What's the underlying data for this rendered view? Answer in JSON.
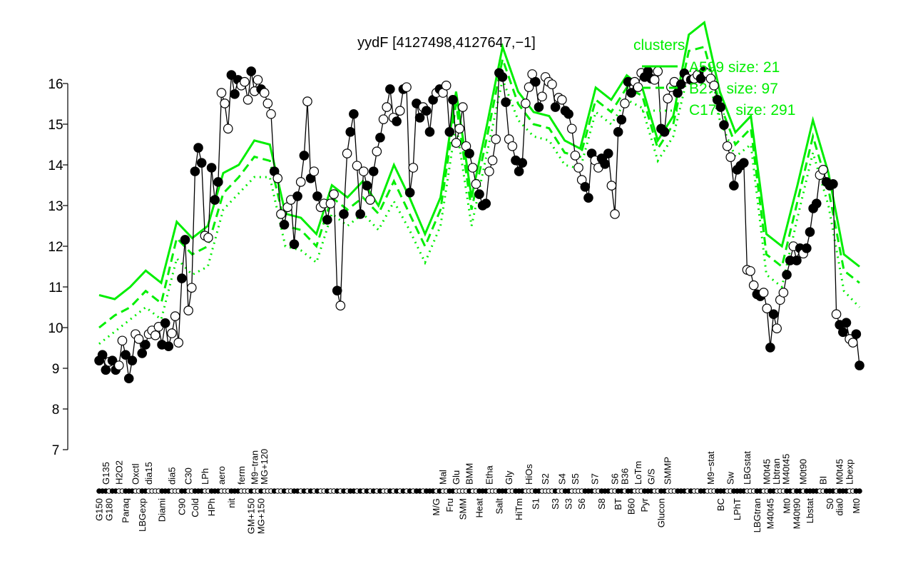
{
  "chart_data": {
    "type": "line",
    "title": "yydF [4127498,4127647,−1]",
    "xlabel": "",
    "ylabel": "",
    "ylim": [
      7,
      16
    ],
    "yticks": [
      7,
      8,
      9,
      10,
      11,
      12,
      13,
      14,
      15,
      16
    ],
    "grid": false,
    "colors": {
      "points": "#000000",
      "clusters": "#00ee00"
    },
    "point_format": "[value, filled(1)/open(0), tick label, label side t=top b=bottom]",
    "points": [
      [
        9.19,
        1,
        "G150",
        "b"
      ],
      [
        9.33,
        1
      ],
      [
        8.96,
        1,
        "G135",
        "t"
      ],
      [
        9.16,
        0,
        "G180",
        "b"
      ],
      [
        9.19,
        1
      ],
      [
        8.96,
        1
      ],
      [
        9.07,
        0,
        "H2O2",
        "t"
      ],
      [
        9.68,
        0
      ],
      [
        9.33,
        1,
        "Paraq",
        "b"
      ],
      [
        8.75,
        1
      ],
      [
        9.19,
        1
      ],
      [
        9.84,
        0,
        "Oxctl",
        "t"
      ],
      [
        9.72,
        0
      ],
      [
        9.37,
        1,
        "LBGexp",
        "b"
      ],
      [
        9.58,
        1
      ],
      [
        9.84,
        0,
        "dia15",
        "t"
      ],
      [
        9.93,
        0
      ],
      [
        9.81,
        0
      ],
      [
        10.02,
        0
      ],
      [
        9.58,
        1,
        "Diami",
        "b"
      ],
      [
        10.11,
        1
      ],
      [
        9.54,
        1
      ],
      [
        9.86,
        0,
        "dia5",
        "t"
      ],
      [
        10.28,
        0
      ],
      [
        9.63,
        0
      ],
      [
        11.21,
        1,
        "C90",
        "b"
      ],
      [
        12.16,
        1
      ],
      [
        10.42,
        0,
        "C30",
        "t"
      ],
      [
        10.98,
        0
      ],
      [
        13.84,
        1,
        "Cold",
        "b"
      ],
      [
        14.42,
        1
      ],
      [
        14.05,
        1
      ],
      [
        12.26,
        0,
        "LPh",
        "t"
      ],
      [
        12.21,
        0
      ],
      [
        13.93,
        1,
        "HPh",
        "b"
      ],
      [
        13.14,
        1
      ],
      [
        13.58,
        1
      ],
      [
        15.77,
        0,
        "aero",
        "t"
      ],
      [
        15.51,
        0
      ],
      [
        14.89,
        0
      ],
      [
        16.21,
        1,
        "nit",
        "b"
      ],
      [
        15.74,
        1
      ],
      [
        16.09,
        1
      ],
      [
        15.95,
        0,
        "ferm",
        "t"
      ],
      [
        16.04,
        0
      ],
      [
        15.6,
        0
      ],
      [
        16.3,
        1,
        "GM+150",
        "b"
      ],
      [
        15.81,
        0,
        "M9−tran",
        "t"
      ],
      [
        16.09,
        0
      ],
      [
        15.86,
        1,
        "MG+150",
        "b"
      ],
      [
        15.77,
        0,
        "MG+120",
        "t"
      ],
      [
        15.51,
        0
      ],
      [
        15.25,
        0
      ],
      [
        13.84,
        1
      ],
      [
        13.67,
        0
      ],
      [
        12.79,
        0
      ],
      [
        12.53,
        1
      ],
      [
        12.96,
        0
      ],
      [
        13.14,
        0
      ],
      [
        12.05,
        1
      ],
      [
        13.23,
        1
      ],
      [
        13.58,
        0
      ],
      [
        14.23,
        1
      ],
      [
        15.56,
        0
      ],
      [
        13.67,
        1
      ],
      [
        13.84,
        0
      ],
      [
        13.23,
        1
      ],
      [
        12.96,
        0
      ],
      [
        13.05,
        0
      ],
      [
        12.65,
        1
      ],
      [
        13.05,
        0
      ],
      [
        13.28,
        0
      ],
      [
        10.91,
        1
      ],
      [
        10.54,
        0
      ],
      [
        12.79,
        1
      ],
      [
        14.28,
        0
      ],
      [
        14.81,
        1
      ],
      [
        15.25,
        1
      ],
      [
        13.98,
        0
      ],
      [
        12.79,
        1
      ],
      [
        13.84,
        0
      ],
      [
        13.49,
        1
      ],
      [
        13.14,
        0
      ],
      [
        13.84,
        1
      ],
      [
        14.33,
        0
      ],
      [
        14.67,
        1
      ],
      [
        15.12,
        0
      ],
      [
        15.42,
        0
      ],
      [
        15.86,
        1
      ],
      [
        15.16,
        0
      ],
      [
        15.07,
        1
      ],
      [
        15.33,
        0
      ],
      [
        15.86,
        1
      ],
      [
        15.91,
        0
      ],
      [
        13.32,
        1
      ],
      [
        13.93,
        0
      ],
      [
        15.51,
        1
      ],
      [
        15.16,
        1
      ],
      [
        15.42,
        0
      ],
      [
        15.33,
        1
      ],
      [
        14.81,
        1
      ],
      [
        15.6,
        1
      ],
      [
        15.77,
        0,
        "M/G",
        "b"
      ],
      [
        15.86,
        1
      ],
      [
        15.77,
        0,
        "Mal",
        "t"
      ],
      [
        15.95,
        0
      ],
      [
        14.81,
        1,
        "Fru",
        "b"
      ],
      [
        15.6,
        1
      ],
      [
        14.54,
        0,
        "Glu",
        "t"
      ],
      [
        14.89,
        0
      ],
      [
        15.42,
        0,
        "SMM",
        "b"
      ],
      [
        14.46,
        0
      ],
      [
        14.28,
        1,
        "BMM",
        "t"
      ],
      [
        13.93,
        0
      ],
      [
        13.53,
        0
      ],
      [
        13.28,
        1,
        "Heat",
        "b"
      ],
      [
        13.0,
        1
      ],
      [
        13.05,
        1
      ],
      [
        13.84,
        0,
        "Etha",
        "t"
      ],
      [
        14.11,
        0
      ],
      [
        14.63,
        0
      ],
      [
        16.26,
        1,
        "Salt",
        "b"
      ],
      [
        16.16,
        1
      ],
      [
        15.54,
        1
      ],
      [
        14.63,
        0,
        "Gly",
        "t"
      ],
      [
        14.46,
        0
      ],
      [
        14.11,
        1
      ],
      [
        13.84,
        1,
        "HiTm",
        "b"
      ],
      [
        14.05,
        1
      ],
      [
        15.51,
        0
      ],
      [
        15.91,
        0,
        "HiOs",
        "t"
      ],
      [
        16.23,
        0
      ],
      [
        16.04,
        1,
        "S1",
        "b"
      ],
      [
        15.42,
        1
      ],
      [
        15.68,
        0
      ],
      [
        16.16,
        0,
        "S2",
        "t"
      ],
      [
        16.04,
        0
      ],
      [
        15.98,
        0
      ],
      [
        15.42,
        1,
        "S3",
        "b"
      ],
      [
        15.65,
        0
      ],
      [
        15.6,
        0,
        "S4",
        "t"
      ],
      [
        15.33,
        1
      ],
      [
        15.25,
        1,
        "S3",
        "b"
      ],
      [
        14.89,
        0
      ],
      [
        14.23,
        0,
        "S5",
        "t"
      ],
      [
        13.93,
        0
      ],
      [
        13.63,
        0,
        "S6",
        "b"
      ],
      [
        13.46,
        1
      ],
      [
        13.19,
        1
      ],
      [
        14.28,
        1
      ],
      [
        14.11,
        0,
        "S7",
        "t"
      ],
      [
        13.93,
        0
      ],
      [
        14.16,
        1,
        "S8",
        "b"
      ],
      [
        14.02,
        1
      ],
      [
        14.28,
        1
      ],
      [
        13.49,
        0
      ],
      [
        12.79,
        0,
        "S6",
        "t"
      ],
      [
        14.81,
        1,
        "BT",
        "b"
      ],
      [
        15.11,
        1
      ],
      [
        15.51,
        0,
        "B36",
        "t"
      ],
      [
        16.04,
        1
      ],
      [
        15.77,
        1,
        "B60",
        "b"
      ],
      [
        16.04,
        0
      ],
      [
        15.91,
        0,
        "LoTm",
        "t"
      ],
      [
        16.26,
        0
      ],
      [
        16.16,
        1,
        "Pyr",
        "b"
      ],
      [
        16.3,
        1
      ],
      [
        16.12,
        1,
        "G/S",
        "t"
      ],
      [
        16.09,
        0
      ],
      [
        16.3,
        0
      ],
      [
        14.89,
        1,
        "Glucon",
        "b"
      ],
      [
        14.81,
        1
      ],
      [
        15.63,
        0,
        "SMMP",
        "t"
      ],
      [
        15.91,
        0
      ],
      [
        16.04,
        0
      ],
      [
        15.77,
        1
      ],
      [
        15.98,
        1
      ],
      [
        16.25,
        1
      ],
      [
        16.12,
        0
      ],
      [
        16.09,
        1
      ],
      [
        16.12,
        0
      ],
      [
        16.21,
        0
      ],
      [
        16.12,
        1
      ],
      [
        16.3,
        1
      ],
      [
        16.25,
        0
      ],
      [
        16.12,
        0,
        "M9−stat",
        "t"
      ],
      [
        15.95,
        0
      ],
      [
        15.6,
        1
      ],
      [
        15.42,
        1,
        "BC",
        "b"
      ],
      [
        14.98,
        1
      ],
      [
        14.46,
        0
      ],
      [
        14.19,
        0,
        "Sw",
        "t"
      ],
      [
        13.49,
        1
      ],
      [
        13.88,
        1,
        "LPhT",
        "b"
      ],
      [
        13.98,
        1
      ],
      [
        14.05,
        1
      ],
      [
        11.42,
        0,
        "LBGstat",
        "t"
      ],
      [
        11.39,
        0
      ],
      [
        11.04,
        0
      ],
      [
        10.82,
        1,
        "LBGtran",
        "b"
      ],
      [
        10.77,
        1
      ],
      [
        10.86,
        0
      ],
      [
        10.47,
        0,
        "M0t45",
        "t"
      ],
      [
        9.51,
        1,
        "M40t45",
        "b"
      ],
      [
        10.33,
        1,
        "Lbtran",
        "t"
      ],
      [
        9.98,
        0
      ],
      [
        10.68,
        0,
        "M40t45",
        "t"
      ],
      [
        10.86,
        0
      ],
      [
        11.3,
        1,
        "Mt0",
        "b"
      ],
      [
        11.65,
        1
      ],
      [
        12.0,
        0
      ],
      [
        11.65,
        1,
        "M40t90",
        "b"
      ],
      [
        11.95,
        1
      ],
      [
        11.82,
        0,
        "M0t90",
        "t"
      ],
      [
        11.95,
        1
      ],
      [
        12.35,
        1,
        "Lbstat",
        "b"
      ],
      [
        12.93,
        1
      ],
      [
        13.05,
        1
      ],
      [
        13.75,
        0
      ],
      [
        13.88,
        0,
        "BI",
        "t"
      ],
      [
        13.58,
        1
      ],
      [
        13.49,
        1,
        "S0",
        "b"
      ],
      [
        13.53,
        1
      ],
      [
        10.33,
        0,
        "dia0",
        "b"
      ],
      [
        10.07,
        1,
        "M0t45",
        "t"
      ],
      [
        9.89,
        1
      ],
      [
        10.12,
        1
      ],
      [
        9.72,
        0,
        "Lbexp",
        "t"
      ],
      [
        9.63,
        0
      ],
      [
        9.84,
        1,
        "Mt0",
        "b"
      ],
      [
        9.07,
        1
      ]
    ],
    "legend": {
      "title": "clusters",
      "placement": "top-right",
      "entries": [
        "A599 size: 21",
        "B2… size: 97",
        "C17… size: 291"
      ]
    },
    "series": [
      {
        "name": "A599 size: 21",
        "style": "solid",
        "values": [
          10.8,
          10.7,
          11.0,
          11.4,
          11.1,
          12.6,
          12.2,
          12.5,
          13.8,
          14.0,
          14.6,
          14.5,
          12.8,
          12.7,
          12.3,
          13.5,
          13.2,
          13.6,
          13.0,
          14.0,
          13.2,
          12.3,
          13.2,
          15.8,
          13.2,
          15.0,
          16.9,
          15.8,
          15.3,
          15.2,
          14.6,
          14.4,
          15.9,
          15.6,
          16.2,
          15.9,
          14.6,
          15.2,
          17.2,
          17.5,
          15.8,
          14.8,
          15.2,
          12.3,
          12.0,
          13.5,
          15.1,
          13.8,
          11.8,
          11.5
        ]
      },
      {
        "name": "B2… size: 97",
        "style": "dashed",
        "values": [
          10.0,
          10.3,
          10.5,
          10.9,
          10.6,
          12.2,
          11.8,
          12.0,
          13.3,
          13.7,
          14.2,
          14.1,
          12.5,
          12.4,
          12.0,
          13.2,
          12.9,
          13.2,
          12.8,
          13.6,
          12.8,
          12.0,
          12.9,
          15.5,
          12.9,
          14.7,
          16.6,
          15.5,
          15.0,
          14.9,
          14.3,
          14.2,
          15.6,
          15.3,
          15.9,
          15.7,
          14.4,
          15.0,
          16.8,
          16.9,
          15.5,
          14.5,
          14.9,
          11.8,
          11.5,
          13.1,
          14.7,
          13.4,
          11.4,
          11.1
        ]
      },
      {
        "name": "C17… size: 291",
        "style": "dotted",
        "values": [
          9.6,
          9.9,
          10.2,
          10.5,
          10.2,
          11.7,
          11.3,
          11.5,
          12.9,
          13.3,
          13.7,
          13.7,
          12.0,
          11.9,
          11.6,
          12.8,
          12.5,
          12.8,
          12.4,
          13.1,
          12.4,
          11.6,
          12.5,
          15.0,
          12.5,
          14.3,
          16.1,
          15.1,
          14.7,
          14.6,
          14.0,
          13.9,
          15.3,
          15.0,
          15.6,
          15.4,
          14.1,
          14.7,
          16.3,
          16.4,
          15.1,
          14.2,
          14.5,
          11.3,
          11.0,
          12.7,
          14.3,
          13.0,
          10.9,
          10.5
        ]
      }
    ]
  }
}
